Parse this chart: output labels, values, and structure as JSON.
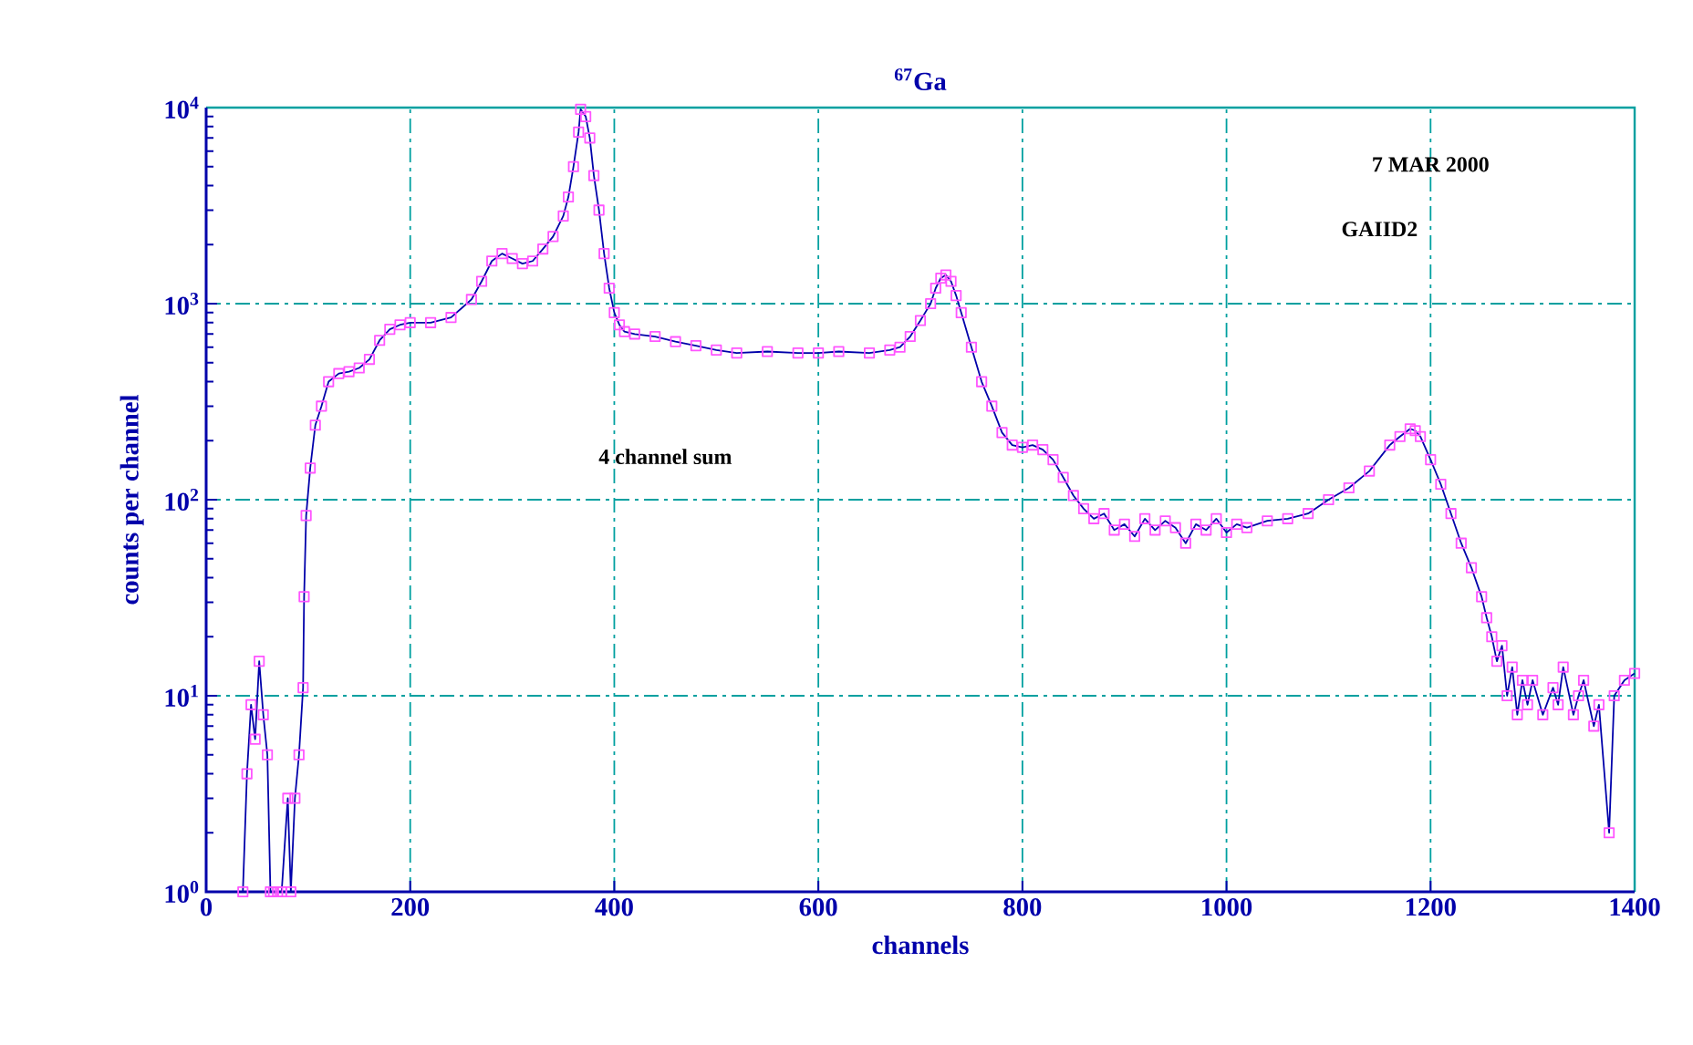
{
  "chart_data": {
    "type": "line",
    "title": "$^{67}$Ga",
    "xlabel": "channels",
    "ylabel": "counts per channel",
    "annotations": [
      "7  MAR 2000",
      "GAIID2",
      "4  channel sum"
    ],
    "log": "y",
    "grid": true,
    "marker": "square",
    "line_style": "solid",
    "xlim": [
      0,
      1400
    ],
    "xticks": [
      0,
      200,
      400,
      600,
      800,
      1000,
      1200,
      1400
    ],
    "ylim": [
      1,
      10000
    ],
    "yticks": [
      {
        "value": 1,
        "label": "10$^{0}$"
      },
      {
        "value": 10,
        "label": "10$^{1}$"
      },
      {
        "value": 100,
        "label": "10$^{2}$"
      },
      {
        "value": 1000,
        "label": "10$^{3}$"
      },
      {
        "value": 10000,
        "label": "10$^{4}$"
      }
    ],
    "series": [
      {
        "color": "#ff55ff",
        "x": [
          36,
          40,
          44,
          48,
          52,
          56,
          60,
          63,
          66,
          70,
          74,
          80,
          83,
          87,
          91,
          95,
          96,
          98,
          102,
          107,
          113,
          120,
          130,
          140,
          150,
          160,
          170,
          180,
          190,
          200,
          220,
          240,
          260,
          270,
          280,
          290,
          300,
          310,
          320,
          330,
          340,
          350,
          355,
          360,
          365,
          367,
          372,
          376,
          380,
          385,
          390,
          395,
          400,
          405,
          410,
          420,
          440,
          460,
          480,
          500,
          520,
          550,
          580,
          600,
          620,
          650,
          670,
          680,
          690,
          700,
          710,
          715,
          720,
          725,
          730,
          735,
          740,
          750,
          760,
          770,
          780,
          790,
          800,
          810,
          820,
          830,
          840,
          850,
          860,
          870,
          880,
          890,
          900,
          910,
          920,
          930,
          940,
          950,
          960,
          970,
          980,
          990,
          1000,
          1010,
          1020,
          1040,
          1060,
          1080,
          1100,
          1120,
          1140,
          1160,
          1170,
          1180,
          1185,
          1190,
          1200,
          1210,
          1220,
          1230,
          1240,
          1250,
          1255,
          1260,
          1265,
          1270,
          1275,
          1280,
          1285,
          1290,
          1295,
          1300,
          1310,
          1320,
          1325,
          1330,
          1340,
          1345,
          1350,
          1360,
          1365,
          1375,
          1380,
          1390,
          1400
        ],
        "values": [
          1,
          4,
          9,
          6,
          15,
          8,
          5,
          1,
          1,
          1,
          1,
          3,
          1,
          3,
          5,
          11,
          32,
          83,
          145,
          240,
          300,
          400,
          440,
          450,
          470,
          520,
          650,
          740,
          780,
          800,
          800,
          850,
          1050,
          1300,
          1650,
          1800,
          1700,
          1600,
          1650,
          1900,
          2200,
          2800,
          3500,
          5000,
          7500,
          9800,
          9000,
          7000,
          4500,
          3000,
          1800,
          1200,
          900,
          780,
          720,
          700,
          680,
          640,
          610,
          580,
          560,
          570,
          560,
          560,
          570,
          560,
          580,
          600,
          680,
          820,
          1000,
          1200,
          1350,
          1400,
          1300,
          1100,
          900,
          600,
          400,
          300,
          220,
          190,
          185,
          190,
          180,
          160,
          130,
          105,
          90,
          80,
          85,
          70,
          75,
          65,
          80,
          70,
          78,
          72,
          60,
          75,
          70,
          80,
          68,
          75,
          72,
          78,
          80,
          85,
          100,
          115,
          140,
          190,
          210,
          230,
          225,
          210,
          160,
          120,
          85,
          60,
          45,
          32,
          25,
          20,
          15,
          18,
          10,
          14,
          8,
          12,
          9,
          12,
          8,
          11,
          9,
          14,
          8,
          10,
          12,
          7,
          9,
          2,
          10,
          12,
          13
        ]
      }
    ]
  }
}
